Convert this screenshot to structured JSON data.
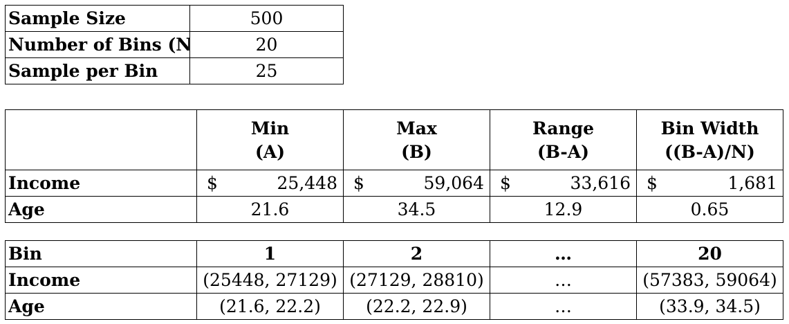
{
  "summary": {
    "rows": [
      {
        "label": "Sample Size",
        "value": "500"
      },
      {
        "label": "Number of Bins (N)",
        "value": "20"
      },
      {
        "label": "Sample per Bin",
        "value": "25"
      }
    ]
  },
  "stats": {
    "columns": [
      {
        "line1": "Min",
        "line2": "(A)"
      },
      {
        "line1": "Max",
        "line2": "(B)"
      },
      {
        "line1": "Range",
        "line2": "(B-A)"
      },
      {
        "line1": "Bin Width",
        "line2": "((B-A)/N)"
      }
    ],
    "income": {
      "label": "Income",
      "currency": "$",
      "values": [
        "25,448",
        "59,064",
        "33,616",
        "1,681"
      ]
    },
    "age": {
      "label": "Age",
      "values": [
        "21.6",
        "34.5",
        "12.9",
        "0.65"
      ]
    }
  },
  "bins": {
    "header_label": "Bin",
    "columns": [
      "1",
      "2",
      "…",
      "20"
    ],
    "income": {
      "label": "Income",
      "values": [
        "(25448, 27129)",
        "(27129, 28810)",
        "…",
        "(57383, 59064)"
      ]
    },
    "age": {
      "label": "Age",
      "values": [
        "(21.6, 22.2)",
        "(22.2, 22.9)",
        "…",
        "(33.9, 34.5)"
      ]
    }
  }
}
